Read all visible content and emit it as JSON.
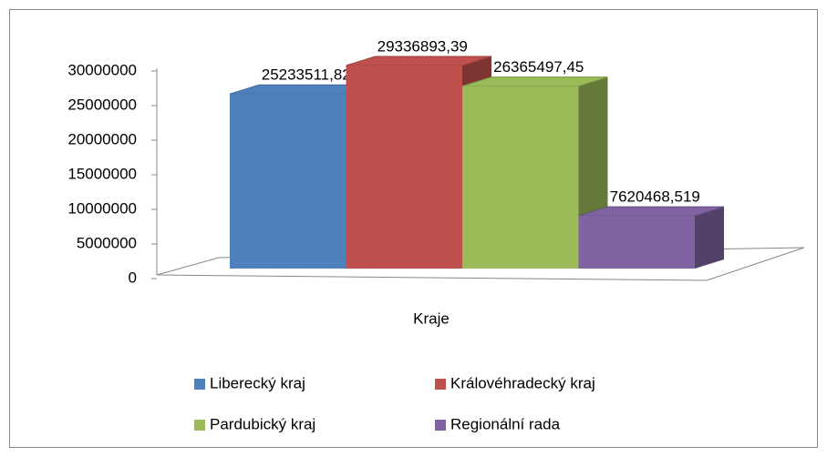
{
  "chart_data": {
    "type": "bar",
    "categories": [
      "Kraje"
    ],
    "series": [
      {
        "name": "Liberecký kraj",
        "color": "#4f81bd",
        "values": [
          25233511.82
        ],
        "value_labels": [
          "25233511,82"
        ]
      },
      {
        "name": "Královéhradecký kraj",
        "color": "#c0504d",
        "values": [
          29336893.39
        ],
        "value_labels": [
          "29336893,39"
        ]
      },
      {
        "name": "Pardubický kraj",
        "color": "#9bbb59",
        "values": [
          26365497.45
        ],
        "value_labels": [
          "26365497,45"
        ]
      },
      {
        "name": "Regionální rada",
        "color": "#8064a2",
        "values": [
          7620468.519
        ],
        "value_labels": [
          "7620468,519"
        ]
      }
    ],
    "ylim": [
      0,
      30000000
    ],
    "yticks": [
      0,
      5000000,
      10000000,
      15000000,
      20000000,
      25000000,
      30000000
    ],
    "grid": false,
    "legend": "bottom"
  }
}
